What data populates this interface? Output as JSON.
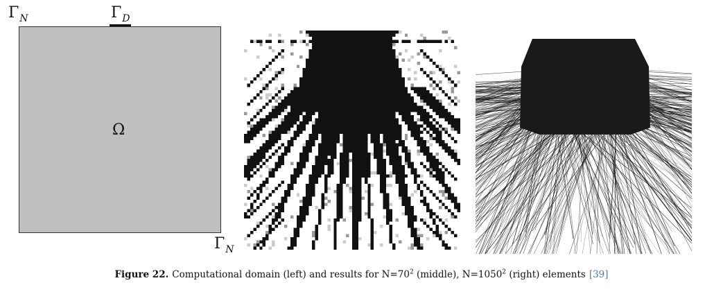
{
  "domain_figure": {
    "label_gamma_n": "Γ",
    "label_gamma_n_sub": "N",
    "label_gamma_d": "Γ",
    "label_gamma_d_sub": "D",
    "label_omega": "Ω",
    "fill_color": "#bfbfbf"
  },
  "caption": {
    "figure_label": "Figure 22.",
    "text_before_first_power": "Computational domain (left) and results for N=70",
    "first_exponent": "2",
    "text_between": " (middle), N=1050",
    "second_exponent": "2",
    "text_after": " (right) elements",
    "reference": "[39]",
    "reference_color": "#3d82c4"
  }
}
